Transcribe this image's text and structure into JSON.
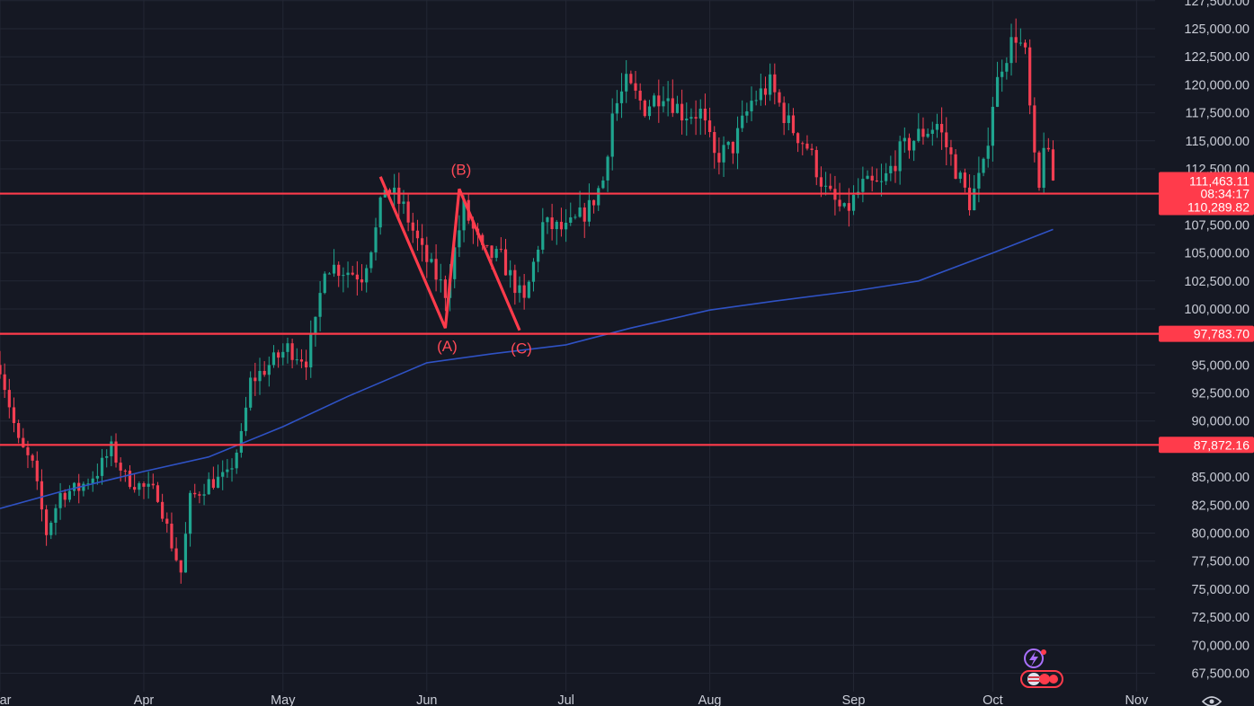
{
  "chart_data": {
    "type": "candlestick",
    "title": "",
    "xlabel": "",
    "ylabel": "",
    "ylim": [
      66250,
      127500
    ],
    "x_ticks": [
      {
        "label": "Mar",
        "date": "2025-03-01"
      },
      {
        "label": "Apr",
        "date": "2025-04-01"
      },
      {
        "label": "May",
        "date": "2025-05-01"
      },
      {
        "label": "Jun",
        "date": "2025-06-01"
      },
      {
        "label": "Jul",
        "date": "2025-07-01"
      },
      {
        "label": "Aug",
        "date": "2025-08-01"
      },
      {
        "label": "Sep",
        "date": "2025-09-01"
      },
      {
        "label": "Oct",
        "date": "2025-10-01"
      },
      {
        "label": "Nov",
        "date": "2025-11-01"
      }
    ],
    "x_range": [
      "2025-03-01",
      "2025-11-05"
    ],
    "y_ticks": [
      {
        "value": 67500,
        "label": "67,500.00"
      },
      {
        "value": 70000,
        "label": "70,000.00"
      },
      {
        "value": 72500,
        "label": "72,500.00"
      },
      {
        "value": 75000,
        "label": "75,000.00"
      },
      {
        "value": 77500,
        "label": "77,500.00"
      },
      {
        "value": 80000,
        "label": "80,000.00"
      },
      {
        "value": 82500,
        "label": "82,500.00"
      },
      {
        "value": 85000,
        "label": "85,000.00"
      },
      {
        "value": 90000,
        "label": "90,000.00"
      },
      {
        "value": 92500,
        "label": "92,500.00"
      },
      {
        "value": 95000,
        "label": "95,000.00"
      },
      {
        "value": 100000,
        "label": "100,000.00"
      },
      {
        "value": 102500,
        "label": "102,500.00"
      },
      {
        "value": 105000,
        "label": "105,000.00"
      },
      {
        "value": 107500,
        "label": "107,500.00"
      },
      {
        "value": 112500,
        "label": "112,500.00"
      },
      {
        "value": 115000,
        "label": "115,000.00"
      },
      {
        "value": 117500,
        "label": "117,500.00"
      },
      {
        "value": 120000,
        "label": "120,000.00"
      },
      {
        "value": 122500,
        "label": "122,500.00"
      },
      {
        "value": 125000,
        "label": "125,000.00"
      },
      {
        "value": 127500,
        "label": "127,500.00"
      }
    ],
    "price_path": [
      [
        "2025-03-01",
        95000
      ],
      [
        "2025-03-05",
        88000
      ],
      [
        "2025-03-08",
        86000
      ],
      [
        "2025-03-11",
        80000
      ],
      [
        "2025-03-14",
        83500
      ],
      [
        "2025-03-18",
        84000
      ],
      [
        "2025-03-22",
        85500
      ],
      [
        "2025-03-25",
        87500
      ],
      [
        "2025-03-28",
        85000
      ],
      [
        "2025-04-01",
        84000
      ],
      [
        "2025-04-04",
        83500
      ],
      [
        "2025-04-07",
        79000
      ],
      [
        "2025-04-09",
        76500
      ],
      [
        "2025-04-11",
        83000
      ],
      [
        "2025-04-15",
        84500
      ],
      [
        "2025-04-19",
        85000
      ],
      [
        "2025-04-22",
        88500
      ],
      [
        "2025-04-24",
        93500
      ],
      [
        "2025-04-28",
        95000
      ],
      [
        "2025-05-02",
        96500
      ],
      [
        "2025-05-06",
        95500
      ],
      [
        "2025-05-08",
        98500
      ],
      [
        "2025-05-10",
        104000
      ],
      [
        "2025-05-14",
        103500
      ],
      [
        "2025-05-18",
        103000
      ],
      [
        "2025-05-21",
        107000
      ],
      [
        "2025-05-23",
        111000
      ],
      [
        "2025-05-27",
        109000
      ],
      [
        "2025-05-31",
        105000
      ],
      [
        "2025-06-05",
        101500
      ],
      [
        "2025-06-09",
        109000
      ],
      [
        "2025-06-13",
        105000
      ],
      [
        "2025-06-17",
        104500
      ],
      [
        "2025-06-22",
        100500
      ],
      [
        "2025-06-26",
        107500
      ],
      [
        "2025-07-01",
        107000
      ],
      [
        "2025-07-06",
        109000
      ],
      [
        "2025-07-09",
        111500
      ],
      [
        "2025-07-11",
        117500
      ],
      [
        "2025-07-14",
        120000
      ],
      [
        "2025-07-18",
        118000
      ],
      [
        "2025-07-22",
        119500
      ],
      [
        "2025-07-26",
        117500
      ],
      [
        "2025-07-30",
        117500
      ],
      [
        "2025-08-02",
        113500
      ],
      [
        "2025-08-06",
        114500
      ],
      [
        "2025-08-10",
        118500
      ],
      [
        "2025-08-14",
        120000
      ],
      [
        "2025-08-18",
        116500
      ],
      [
        "2025-08-22",
        114500
      ],
      [
        "2025-08-26",
        110500
      ],
      [
        "2025-08-30",
        108500
      ],
      [
        "2025-09-03",
        111000
      ],
      [
        "2025-09-07",
        111000
      ],
      [
        "2025-09-11",
        114000
      ],
      [
        "2025-09-15",
        115500
      ],
      [
        "2025-09-19",
        116500
      ],
      [
        "2025-09-23",
        112500
      ],
      [
        "2025-09-26",
        109500
      ],
      [
        "2025-09-29",
        112500
      ],
      [
        "2025-10-01",
        118500
      ],
      [
        "2025-10-03",
        122000
      ],
      [
        "2025-10-06",
        124500
      ],
      [
        "2025-10-08",
        122500
      ],
      [
        "2025-10-10",
        113000
      ],
      [
        "2025-10-11",
        110500
      ],
      [
        "2025-10-12",
        115000
      ],
      [
        "2025-10-14",
        111500
      ]
    ],
    "moving_average": {
      "color": "#2f52c4",
      "points": [
        [
          "2025-03-01",
          82200
        ],
        [
          "2025-03-15",
          83800
        ],
        [
          "2025-04-01",
          85500
        ],
        [
          "2025-04-15",
          86800
        ],
        [
          "2025-05-01",
          89500
        ],
        [
          "2025-05-15",
          92200
        ],
        [
          "2025-06-01",
          95200
        ],
        [
          "2025-06-15",
          96000
        ],
        [
          "2025-07-01",
          96800
        ],
        [
          "2025-07-15",
          98300
        ],
        [
          "2025-08-01",
          99900
        ],
        [
          "2025-08-15",
          100700
        ],
        [
          "2025-09-01",
          101600
        ],
        [
          "2025-09-15",
          102500
        ],
        [
          "2025-10-01",
          105000
        ],
        [
          "2025-10-14",
          107100
        ]
      ]
    },
    "horizontal_levels": [
      {
        "price": 110289.82,
        "label": "110,289.82"
      },
      {
        "price": 97783.7,
        "label": "97,783.70"
      },
      {
        "price": 87872.16,
        "label": "87,872.16"
      }
    ],
    "current_price": {
      "label": "111,463.11",
      "countdown": "08:34:17"
    },
    "wave_pattern": {
      "points": [
        {
          "date": "2025-05-22",
          "price": 111800,
          "label": ""
        },
        {
          "date": "2025-06-05",
          "price": 98300,
          "label": "(A)"
        },
        {
          "date": "2025-06-08",
          "price": 110700,
          "label": "(B)"
        },
        {
          "date": "2025-06-21",
          "price": 98100,
          "label": "(C)"
        }
      ]
    },
    "colors": {
      "background": "#151823",
      "up": "#1fa58f",
      "down": "#f23e52",
      "annotation": "#ff3b4b",
      "grid": "#232734",
      "axis_text": "#c9ccd6"
    },
    "grid": true,
    "legend": "none"
  }
}
